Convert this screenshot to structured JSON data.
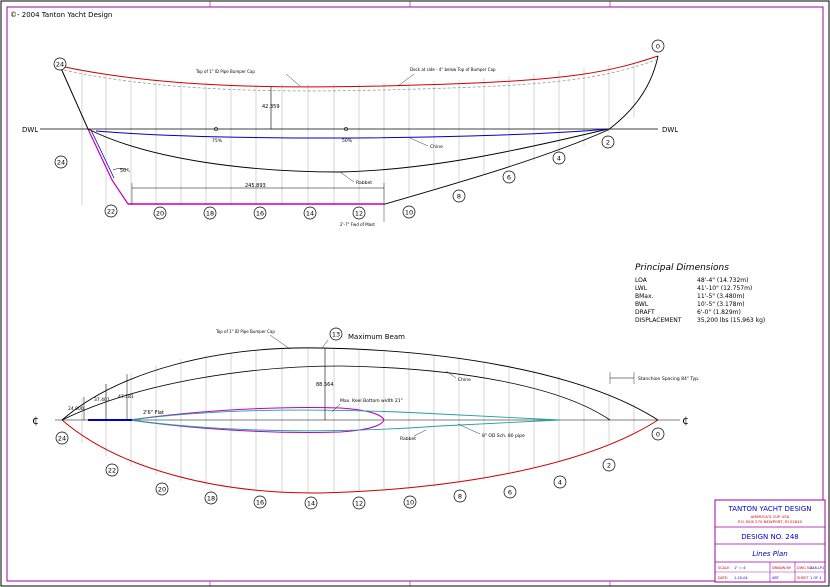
{
  "copyright": "©- 2004 Tanton Yacht Design",
  "profile": {
    "dwl_left": "DWL",
    "dwl_right": "DWL",
    "label_top_pipe": "Top of 1\" ID Pipe Bumper Cap",
    "label_deck_at_side": "Deck at side - 4\" below Top of Bumper Cap",
    "dim_freeboard": "42.359",
    "mark_75": "75%",
    "mark_50": "50%",
    "label_chine": "Chine",
    "label_rabbet": "Rabbet",
    "dim_rabbet_length": "245.893",
    "angle_label": "50°",
    "label_fwd_face": "2'-7\" Fwd of Mast",
    "stations": [
      "24",
      "22",
      "20",
      "18",
      "16",
      "14",
      "12",
      "10",
      "8",
      "6",
      "4",
      "2",
      "0"
    ]
  },
  "plan": {
    "station_13": "13",
    "label_max_beam": "Maximum Beam",
    "label_top_pipe": "Top of 1\" ID Pipe Bumper Cap",
    "dim_half_beam": "88.564",
    "label_bottom_width": "Max. Keel Bottom width 21\"",
    "label_chine": "Chine",
    "label_stanchion": "Stanchion Spacing 84\" Typ.",
    "dim_1": "24.000",
    "dim_2": "37.401",
    "dim_3": "47.181",
    "label_flat": "2'6\" Flat",
    "label_rabbet": "Rabbet",
    "label_keel_sect": "8\" OD Sch. 80 pipe",
    "centerline_left": "¢",
    "centerline_right": "¢"
  },
  "principal_dimensions": {
    "title": "Principal Dimensions",
    "rows": [
      {
        "label": "LOA",
        "value": "48'-4\"  (14.732m)"
      },
      {
        "label": "LWL",
        "value": "41'-10\"  (12.757m)"
      },
      {
        "label": "BMax.",
        "value": "11'-5\"  (3.480m)"
      },
      {
        "label": "BWL",
        "value": "10'-5\"  (3.178m)"
      },
      {
        "label": "DRAFT",
        "value": "6'-0\"  (1.829m)"
      },
      {
        "label": "DISPLACEMENT",
        "value": "35,200 lbs (15,963 kg)"
      }
    ]
  },
  "title_block": {
    "company": "TANTON YACHT DESIGN",
    "address_1": "AMERICA'S CUP USA",
    "address_2": "P.O. BOX 270 NEWPORT, RI 02840",
    "design_no": "DESIGN NO. 248",
    "sheet_title": "Lines Plan",
    "scale_label": "SCALE:",
    "scale_value": "1\" = 4'",
    "date_label": "DATE:",
    "date_value": "1-20-04",
    "drawn_label": "DRAWN BY:",
    "drawn_value": "ABT",
    "dwg_label": "DWG NO.",
    "dwg_value": "248-LP1",
    "sheet_label": "SHEET",
    "sheet_value": "1 OF 1"
  }
}
